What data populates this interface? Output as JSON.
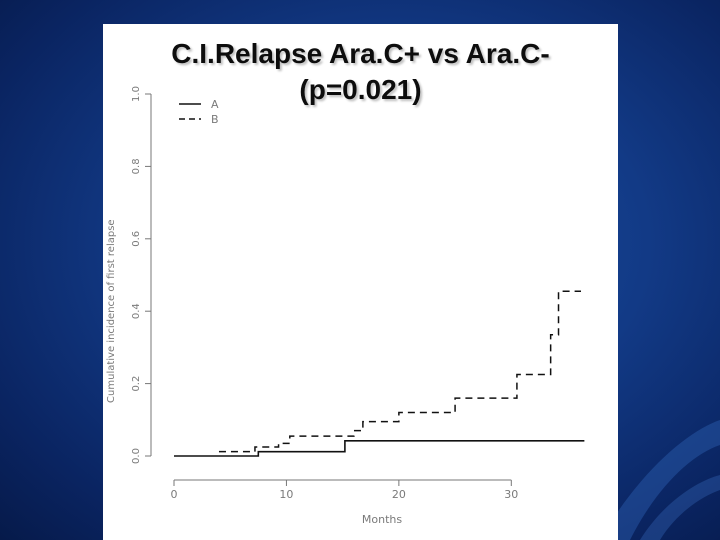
{
  "slide": {
    "title_line1": "C.I.Relapse Ara.C+ vs Ara.C-",
    "title_line2": "(p=0.021)"
  },
  "colors": {
    "background": "#123a86",
    "panel": "#ffffff",
    "line": "#111111"
  },
  "chart_data": {
    "type": "line",
    "title": "C.I.Relapse Ara.C+ vs Ara.C- (p=0.021)",
    "xlabel": "Months",
    "ylabel": "Cumulative incidence of first relapse",
    "xlim": [
      0,
      37
    ],
    "ylim": [
      0,
      1.0
    ],
    "xticks": [
      "0",
      "10",
      "20",
      "30"
    ],
    "yticks": [
      "0.0",
      "0.2",
      "0.4",
      "0.6",
      "0.8",
      "1.0"
    ],
    "grid": false,
    "legend_position": "top-left",
    "series": [
      {
        "name": "A",
        "style": "solid",
        "x": [
          0,
          7.5,
          15.2,
          36.5
        ],
        "y": [
          0.0,
          0.012,
          0.042,
          0.042
        ]
      },
      {
        "name": "B",
        "style": "dashed",
        "x": [
          4,
          7.2,
          9.3,
          10.3,
          16.0,
          16.8,
          20.0,
          25.0,
          30.5,
          33.5,
          34.2,
          36.2
        ],
        "y": [
          0.012,
          0.025,
          0.035,
          0.055,
          0.07,
          0.095,
          0.12,
          0.16,
          0.225,
          0.335,
          0.455,
          0.455
        ]
      }
    ]
  }
}
